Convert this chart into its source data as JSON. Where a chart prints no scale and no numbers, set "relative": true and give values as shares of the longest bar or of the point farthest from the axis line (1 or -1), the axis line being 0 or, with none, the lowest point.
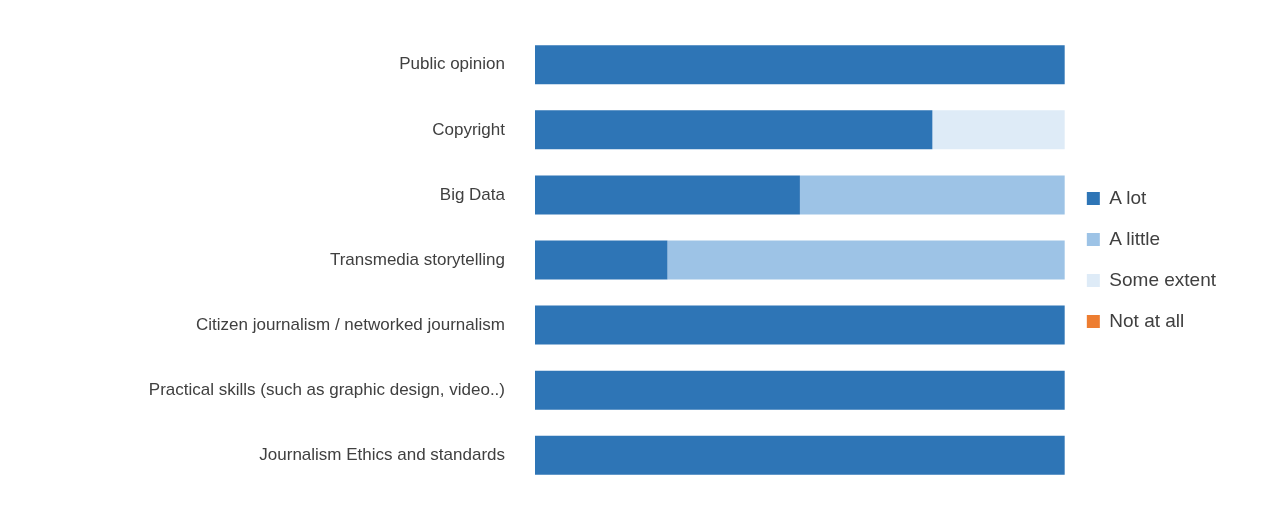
{
  "chart_data": {
    "type": "bar",
    "orientation": "horizontal",
    "stacked": true,
    "relative": true,
    "legend": "right",
    "categories": [
      "Public opinion",
      "Copyright",
      "Big Data",
      "Transmedia storytelling",
      "Citizen journalism / networked journalism",
      "Practical skills (such as graphic design, video..)",
      "Journalism Ethics and standards"
    ],
    "series": [
      {
        "name": "A lot",
        "color": "#2e75b6",
        "values": [
          1,
          0.75,
          0.5,
          0.25,
          1,
          1,
          1
        ]
      },
      {
        "name": "A little",
        "color": "#9dc3e6",
        "values": [
          0,
          0,
          0.5,
          0.75,
          0,
          0,
          0
        ]
      },
      {
        "name": "Some extent",
        "color": "#deebf7",
        "values": [
          0,
          0.25,
          0,
          0,
          0,
          0,
          0
        ]
      },
      {
        "name": "Not at all",
        "color": "#ed7d31",
        "values": [
          0,
          0,
          0,
          0,
          0,
          0,
          0
        ]
      }
    ]
  }
}
